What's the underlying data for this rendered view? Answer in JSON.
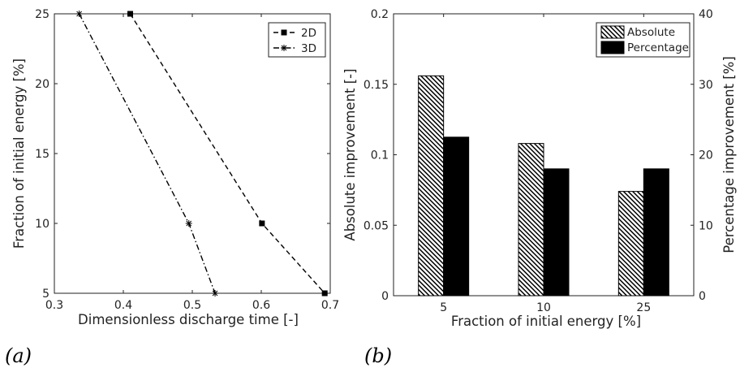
{
  "panel_labels": [
    "(a)",
    "(b)"
  ],
  "chart_data": [
    {
      "type": "line",
      "xlabel": "Dimensionless discharge time [-]",
      "ylabel": "Fraction of initial energy [%]",
      "xlim": [
        0.3,
        0.7
      ],
      "ylim": [
        5,
        25
      ],
      "xticks": [
        "0.3",
        "0.4",
        "0.5",
        "0.6",
        "0.7"
      ],
      "yticks": [
        "5",
        "10",
        "15",
        "20",
        "25"
      ],
      "grid": false,
      "legend": "top-right",
      "series": [
        {
          "name": "2D",
          "marker": "square",
          "dash": "dashed",
          "x": [
            0.41,
            0.601,
            0.692
          ],
          "y": [
            25,
            10,
            5
          ]
        },
        {
          "name": "3D",
          "marker": "asterisk",
          "dash": "dashdot",
          "x": [
            0.336,
            0.495,
            0.533
          ],
          "y": [
            25,
            10,
            5
          ]
        }
      ]
    },
    {
      "type": "bar",
      "xlabel": "Fraction of initial energy [%]",
      "ylabel": "Absolute improvement [-]",
      "ylabel_right": "Percentage improvement [%]",
      "categories": [
        "5",
        "10",
        "25"
      ],
      "ylim": [
        0,
        0.2
      ],
      "ylim_right": [
        0,
        40
      ],
      "yticks": [
        "0",
        "0.05",
        "0.1",
        "0.15",
        "0.2"
      ],
      "yticks_right": [
        "0",
        "10",
        "20",
        "30",
        "40"
      ],
      "grid": false,
      "legend": "top-right",
      "series": [
        {
          "name": "Absolute",
          "axis": "left",
          "pattern": "hatched",
          "values": [
            0.156,
            0.108,
            0.074
          ]
        },
        {
          "name": "Percentage",
          "axis": "right",
          "pattern": "solid",
          "values": [
            22.5,
            18.0,
            18.0
          ]
        }
      ]
    }
  ]
}
